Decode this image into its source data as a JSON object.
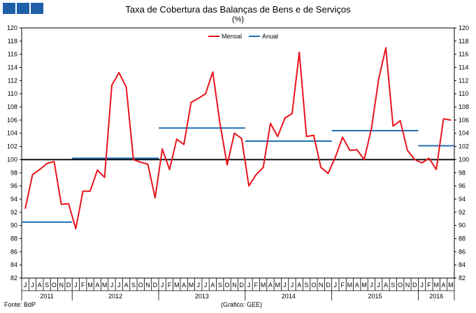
{
  "header_squares": {
    "color": "#1f5fa8",
    "count": 4
  },
  "title": "Taxa de Cobertura das Balanças de Bens e de Serviços",
  "subtitle": "(%)",
  "footer": {
    "source": "Fonte: BdP",
    "credit": "(Gráfico: GEE)"
  },
  "chart_data": {
    "type": "line",
    "ylim": [
      82,
      120
    ],
    "yticks": [
      82,
      84,
      86,
      88,
      90,
      92,
      94,
      96,
      98,
      100,
      102,
      104,
      106,
      108,
      110,
      112,
      114,
      116,
      118,
      120
    ],
    "reference_line": 100,
    "month_labels": [
      "J",
      "J",
      "A",
      "S",
      "O",
      "N",
      "D",
      "J",
      "F",
      "M",
      "A",
      "M",
      "J",
      "J",
      "A",
      "S",
      "O",
      "N",
      "D",
      "J",
      "F",
      "M",
      "A",
      "M",
      "J",
      "J",
      "A",
      "S",
      "O",
      "N",
      "D",
      "J",
      "F",
      "M",
      "A",
      "M",
      "J",
      "J",
      "A",
      "S",
      "O",
      "N",
      "D",
      "J",
      "F",
      "M",
      "A",
      "M",
      "J",
      "J",
      "A",
      "S",
      "O",
      "N",
      "D",
      "J",
      "F",
      "M",
      "A",
      "M"
    ],
    "years": [
      {
        "label": "2011",
        "start": 0,
        "end": 6
      },
      {
        "label": "2012",
        "start": 7,
        "end": 18
      },
      {
        "label": "2013",
        "start": 19,
        "end": 30
      },
      {
        "label": "2014",
        "start": 31,
        "end": 42
      },
      {
        "label": "2015",
        "start": 43,
        "end": 54
      },
      {
        "label": "2016",
        "start": 55,
        "end": 59
      }
    ],
    "legend": {
      "placement": "top-center"
    },
    "series": [
      {
        "name": "Mensal",
        "color": "#e8141c",
        "values": [
          92.6,
          97.7,
          98.5,
          99.4,
          99.7,
          93.2,
          93.3,
          89.5,
          95.2,
          95.2,
          98.4,
          97.3,
          111.3,
          113.2,
          111.0,
          100.0,
          99.6,
          99.3,
          94.2,
          101.6,
          98.5,
          103.1,
          102.3,
          108.7,
          109.3,
          110.0,
          113.3,
          105.5,
          99.2,
          104.0,
          103.2,
          96.0,
          97.7,
          98.8,
          105.5,
          103.5,
          106.3,
          107.0,
          116.3,
          103.5,
          103.7,
          98.8,
          97.9,
          100.4,
          103.4,
          101.4,
          101.5,
          100.0,
          104.7,
          112.2,
          117.0,
          105.1,
          105.9,
          101.4,
          100.0,
          99.5,
          100.2,
          98.5,
          106.2,
          106.0
        ]
      },
      {
        "name": "Anual",
        "color": "#1f6fb4",
        "segments": [
          {
            "from": 0,
            "to": 6,
            "value": 90.5
          },
          {
            "from": 7,
            "to": 18,
            "value": 100.2
          },
          {
            "from": 19,
            "to": 30,
            "value": 104.8
          },
          {
            "from": 31,
            "to": 42,
            "value": 102.8
          },
          {
            "from": 43,
            "to": 54,
            "value": 104.4
          },
          {
            "from": 55,
            "to": 59,
            "value": 102.1
          }
        ]
      }
    ]
  }
}
